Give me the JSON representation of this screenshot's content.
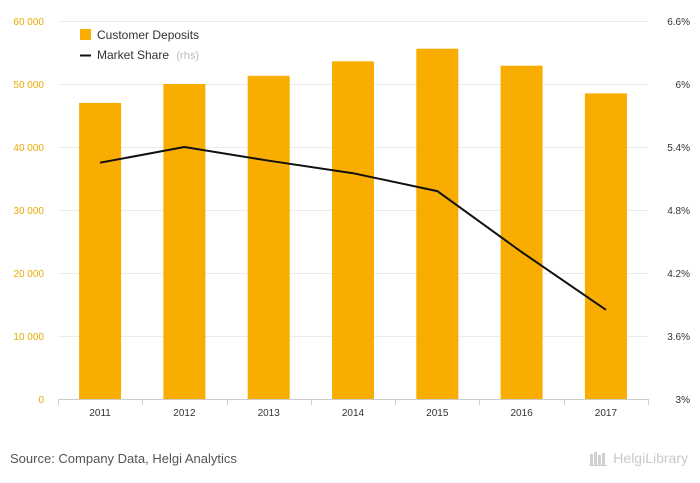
{
  "chart_data": {
    "type": "bar",
    "categories": [
      "2011",
      "2012",
      "2013",
      "2014",
      "2015",
      "2016",
      "2017"
    ],
    "series": [
      {
        "name": "Customer Deposits",
        "type": "bar",
        "axis": "left",
        "color": "#f8ad00",
        "values": [
          47000,
          50000,
          51300,
          53600,
          55600,
          52900,
          48500
        ]
      },
      {
        "name": "Market Share",
        "name_suffix": "(rhs)",
        "type": "line",
        "axis": "right",
        "color": "#111111",
        "values": [
          5.25,
          5.4,
          5.27,
          5.15,
          4.98,
          4.4,
          3.85
        ]
      }
    ],
    "y_left": {
      "ylim": [
        0,
        60000
      ],
      "ticks": [
        0,
        10000,
        20000,
        30000,
        40000,
        50000,
        60000
      ],
      "tick_labels": [
        "0",
        "10 000",
        "20 000",
        "30 000",
        "40 000",
        "50 000",
        "60 000"
      ]
    },
    "y_right": {
      "ylim": [
        3.0,
        6.6
      ],
      "ticks": [
        3.0,
        3.6,
        4.2,
        4.8,
        5.4,
        6.0,
        6.6
      ],
      "tick_labels": [
        "3%",
        "3.6%",
        "4.2%",
        "4.8%",
        "5.4%",
        "6%",
        "6.6%"
      ]
    },
    "title": "",
    "xlabel": "",
    "ylabel": "",
    "legend_position": "top-left",
    "grid": true
  },
  "footer": {
    "source": "Source: Company Data, Helgi Analytics",
    "brand": "HelgiLibrary"
  }
}
